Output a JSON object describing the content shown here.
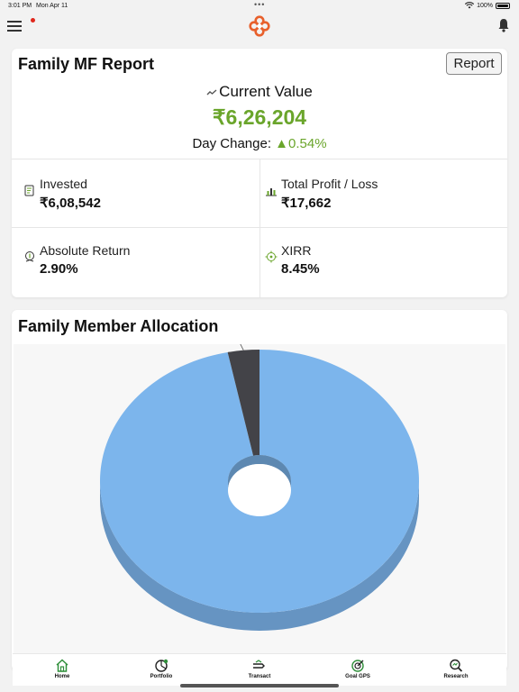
{
  "status_bar": {
    "time": "3:01 PM",
    "date": "Mon Apr 11",
    "battery": "100%"
  },
  "report": {
    "title": "Family MF Report",
    "report_button": "Report",
    "current_value_label": "Current Value",
    "current_value": "₹6,26,204",
    "day_change_label": "Day Change:",
    "day_change_value": "▲0.54%",
    "metrics": [
      {
        "label": "Invested",
        "value": "₹6,08,542",
        "icon": "invested-icon"
      },
      {
        "label": "Total Profit / Loss",
        "value": "₹17,662",
        "icon": "bar-chart-icon"
      },
      {
        "label": "Absolute Return",
        "value": "2.90%",
        "icon": "return-icon"
      },
      {
        "label": "XIRR",
        "value": "8.45%",
        "icon": "target-icon"
      }
    ]
  },
  "allocation": {
    "title": "Family Member Allocation",
    "slice_label": "s"
  },
  "chart_data": {
    "type": "pie",
    "title": "",
    "slices": [
      {
        "name": "",
        "value": 96.8,
        "color": "#7cb5ec"
      },
      {
        "name": "s",
        "value": 3.2,
        "color": "#434348"
      }
    ]
  },
  "tabs": [
    {
      "label": "Home",
      "icon": "home-icon"
    },
    {
      "label": "Portfolio",
      "icon": "pie-chart-icon"
    },
    {
      "label": "Transact",
      "icon": "transact-icon"
    },
    {
      "label": "Goal GPS",
      "icon": "goal-icon"
    },
    {
      "label": "Research",
      "icon": "research-icon"
    }
  ],
  "colors": {
    "accent_green": "#6aa52b",
    "brand_orange": "#e8602c",
    "slice_blue": "#7cb5ec",
    "slice_dark": "#434348"
  }
}
